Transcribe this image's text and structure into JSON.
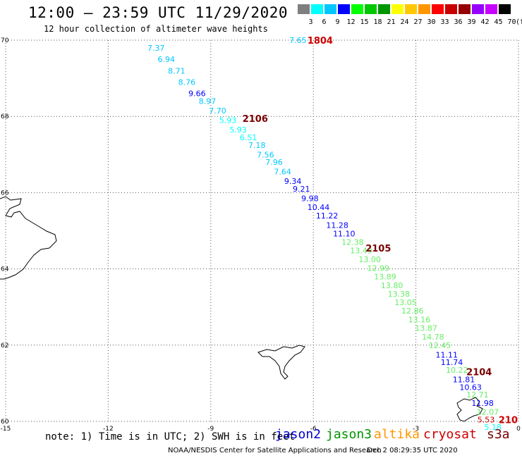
{
  "header": {
    "title": "12:00 – 23:59 UTC 11/29/2020",
    "subtitle": "12 hour collection of altimeter wave heights"
  },
  "color_scale": {
    "ticks": [
      "3",
      "6",
      "9",
      "12",
      "15",
      "18",
      "21",
      "24",
      "27",
      "30",
      "33",
      "36",
      "39",
      "42",
      "45",
      "70"
    ],
    "unit": "(ft)",
    "colors": [
      "#7f7f7f",
      "#00ffff",
      "#00c8ff",
      "#0000ff",
      "#00ff00",
      "#00c800",
      "#009600",
      "#ffff00",
      "#ffc800",
      "#ff9600",
      "#ff0000",
      "#c80000",
      "#960000",
      "#9600ff",
      "#c800ff",
      "#000000"
    ]
  },
  "note": "note: 1) Time is in UTC; 2) SWH is in feet",
  "legend": [
    {
      "name": "jason2",
      "color": "#0000cc"
    },
    {
      "name": "jason3",
      "color": "#009600"
    },
    {
      "name": "altika",
      "color": "#ff9600"
    },
    {
      "name": "cryosat",
      "color": "#cc0000"
    },
    {
      "name": "s3a",
      "color": "#7a0000"
    }
  ],
  "footer": {
    "credit": "NOAA/NESDIS Center for Satellite Applications and Research",
    "timestamp": "Dec  2 08:29:35 UTC 2020"
  },
  "chart_data": {
    "type": "scatter",
    "x_ticks": [
      "-15",
      "-12",
      "-9",
      "-6",
      "-3",
      "0"
    ],
    "y_ticks": [
      "70",
      "68",
      "66",
      "64",
      "62",
      "60"
    ],
    "xlim": [
      -15,
      0
    ],
    "ylim": [
      60,
      70
    ],
    "grid": true,
    "tracks": [
      {
        "label": "1804",
        "label_color": "#cc0000",
        "label_at": [
          -5.8,
          70.0
        ]
      },
      {
        "label": "2106",
        "label_color": "#7a0000",
        "label_at": [
          -7.7,
          67.95
        ]
      },
      {
        "label": "2105",
        "label_color": "#7a0000",
        "label_at": [
          -4.1,
          64.55
        ]
      },
      {
        "label": "2104",
        "label_color": "#7a0000",
        "label_at": [
          -1.15,
          61.3
        ]
      },
      {
        "label": "210",
        "label_color": "#cc0000",
        "label_at": [
          -0.3,
          60.05
        ]
      }
    ],
    "points": [
      {
        "lon": -6.45,
        "lat": 70.0,
        "v": "7.65",
        "c": "#00c8ff"
      },
      {
        "lon": -10.6,
        "lat": 69.8,
        "v": "7.37",
        "c": "#00c8ff"
      },
      {
        "lon": -10.3,
        "lat": 69.5,
        "v": "6.94",
        "c": "#00c8ff"
      },
      {
        "lon": -10.0,
        "lat": 69.2,
        "v": "8.71",
        "c": "#00c8ff"
      },
      {
        "lon": -9.7,
        "lat": 68.9,
        "v": "8.76",
        "c": "#00c8ff"
      },
      {
        "lon": -9.4,
        "lat": 68.6,
        "v": "9.66",
        "c": "#0000ff"
      },
      {
        "lon": -9.1,
        "lat": 68.4,
        "v": "8.97",
        "c": "#00c8ff"
      },
      {
        "lon": -8.8,
        "lat": 68.15,
        "v": "7.70",
        "c": "#00c8ff"
      },
      {
        "lon": -8.5,
        "lat": 67.9,
        "v": "5.93",
        "c": "#00ffff"
      },
      {
        "lon": -8.2,
        "lat": 67.65,
        "v": "5.93",
        "c": "#00ffff"
      },
      {
        "lon": -7.9,
        "lat": 67.45,
        "v": "6.51",
        "c": "#00ffff"
      },
      {
        "lon": -7.65,
        "lat": 67.25,
        "v": "7.18",
        "c": "#00c8ff"
      },
      {
        "lon": -7.4,
        "lat": 67.0,
        "v": "7.56",
        "c": "#00c8ff"
      },
      {
        "lon": -7.15,
        "lat": 66.8,
        "v": "7.96",
        "c": "#00c8ff"
      },
      {
        "lon": -6.9,
        "lat": 66.55,
        "v": "7.64",
        "c": "#00c8ff"
      },
      {
        "lon": -6.6,
        "lat": 66.3,
        "v": "9.34",
        "c": "#0000ff"
      },
      {
        "lon": -6.35,
        "lat": 66.1,
        "v": "9.21",
        "c": "#0000ff"
      },
      {
        "lon": -6.1,
        "lat": 65.85,
        "v": "9.98",
        "c": "#0000ff"
      },
      {
        "lon": -5.85,
        "lat": 65.62,
        "v": "10.44",
        "c": "#0000ff"
      },
      {
        "lon": -5.6,
        "lat": 65.4,
        "v": "11.22",
        "c": "#0000ff"
      },
      {
        "lon": -5.3,
        "lat": 65.15,
        "v": "11.28",
        "c": "#0000ff"
      },
      {
        "lon": -5.1,
        "lat": 64.93,
        "v": "11.10",
        "c": "#0000ff"
      },
      {
        "lon": -4.85,
        "lat": 64.7,
        "v": "12.38",
        "c": "#66ee66"
      },
      {
        "lon": -4.6,
        "lat": 64.48,
        "v": "13.49",
        "c": "#66ee66"
      },
      {
        "lon": -4.35,
        "lat": 64.25,
        "v": "13.00",
        "c": "#66ee66"
      },
      {
        "lon": -4.1,
        "lat": 64.02,
        "v": "12.99",
        "c": "#66ee66"
      },
      {
        "lon": -3.9,
        "lat": 63.8,
        "v": "13.89",
        "c": "#66ee66"
      },
      {
        "lon": -3.7,
        "lat": 63.57,
        "v": "13.80",
        "c": "#66ee66"
      },
      {
        "lon": -3.5,
        "lat": 63.35,
        "v": "13.38",
        "c": "#66ee66"
      },
      {
        "lon": -3.3,
        "lat": 63.12,
        "v": "13.05",
        "c": "#66ee66"
      },
      {
        "lon": -3.1,
        "lat": 62.9,
        "v": "12.86",
        "c": "#66ee66"
      },
      {
        "lon": -2.9,
        "lat": 62.67,
        "v": "13.16",
        "c": "#66ee66"
      },
      {
        "lon": -2.7,
        "lat": 62.45,
        "v": "13.87",
        "c": "#66ee66"
      },
      {
        "lon": -2.5,
        "lat": 62.22,
        "v": "14.78",
        "c": "#66ee66"
      },
      {
        "lon": -2.3,
        "lat": 62.0,
        "v": "12.45",
        "c": "#66ee66"
      },
      {
        "lon": -2.1,
        "lat": 61.75,
        "v": "11.11",
        "c": "#0000ff"
      },
      {
        "lon": -1.95,
        "lat": 61.55,
        "v": "11.74",
        "c": "#0000ff"
      },
      {
        "lon": -1.8,
        "lat": 61.35,
        "v": "10.22",
        "c": "#66ee66"
      },
      {
        "lon": -1.6,
        "lat": 61.1,
        "v": "11.81",
        "c": "#0000ff"
      },
      {
        "lon": -1.4,
        "lat": 60.9,
        "v": "10.63",
        "c": "#0000ff"
      },
      {
        "lon": -1.2,
        "lat": 60.7,
        "v": "12.71",
        "c": "#66ee66"
      },
      {
        "lon": -1.05,
        "lat": 60.48,
        "v": "11.98",
        "c": "#0000ff"
      },
      {
        "lon": -0.9,
        "lat": 60.25,
        "v": "12.07",
        "c": "#66ee66"
      },
      {
        "lon": -0.95,
        "lat": 60.05,
        "v": "5.53",
        "c": "#cc0000"
      },
      {
        "lon": -0.75,
        "lat": 59.85,
        "v": "5.18",
        "c": "#00ffff"
      }
    ]
  }
}
